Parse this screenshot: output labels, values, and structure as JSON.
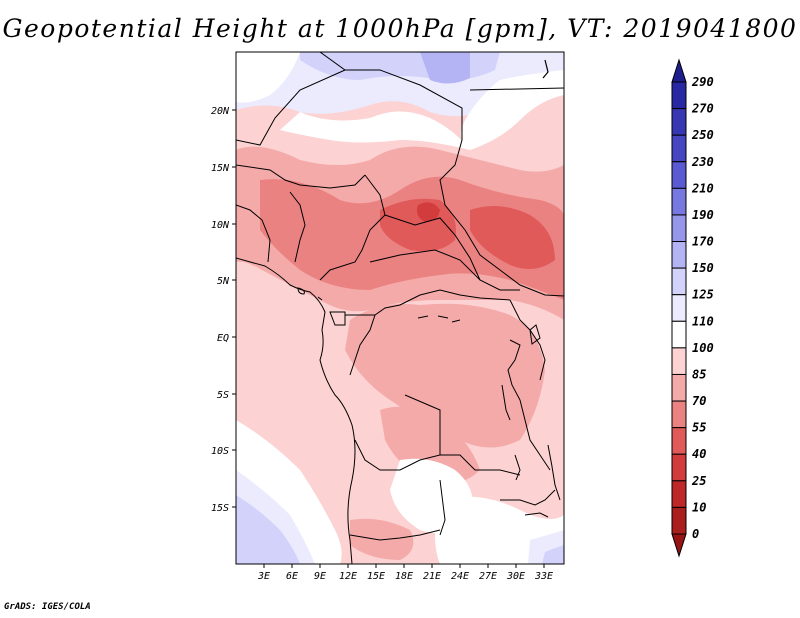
{
  "title": "Geopotential Height at 1000hPa [gpm], VT: 2019041800",
  "footer": "GrADS: IGES/COLA",
  "map": {
    "lat_ticks": [
      "20N",
      "15N",
      "10N",
      "5N",
      "EQ",
      "5S",
      "10S",
      "15S"
    ],
    "lon_ticks": [
      "3E",
      "6E",
      "9E",
      "12E",
      "15E",
      "18E",
      "21E",
      "24E",
      "27E",
      "30E",
      "33E"
    ]
  },
  "colorbar": {
    "labels": [
      "290",
      "270",
      "250",
      "230",
      "210",
      "190",
      "170",
      "150",
      "125",
      "110",
      "100",
      "85",
      "70",
      "55",
      "40",
      "25",
      "10",
      "0"
    ],
    "colors": [
      "#1e1e8c",
      "#2828a5",
      "#3737b4",
      "#4646c3",
      "#5a5ad2",
      "#7878e1",
      "#9696eb",
      "#b4b4f5",
      "#d2d2fa",
      "#ebebfd",
      "#ffffff",
      "#fcd2d2",
      "#f5aaaa",
      "#eb8282",
      "#e15a5a",
      "#d23c3c",
      "#be2828",
      "#aa1e1e",
      "#961414"
    ]
  }
}
